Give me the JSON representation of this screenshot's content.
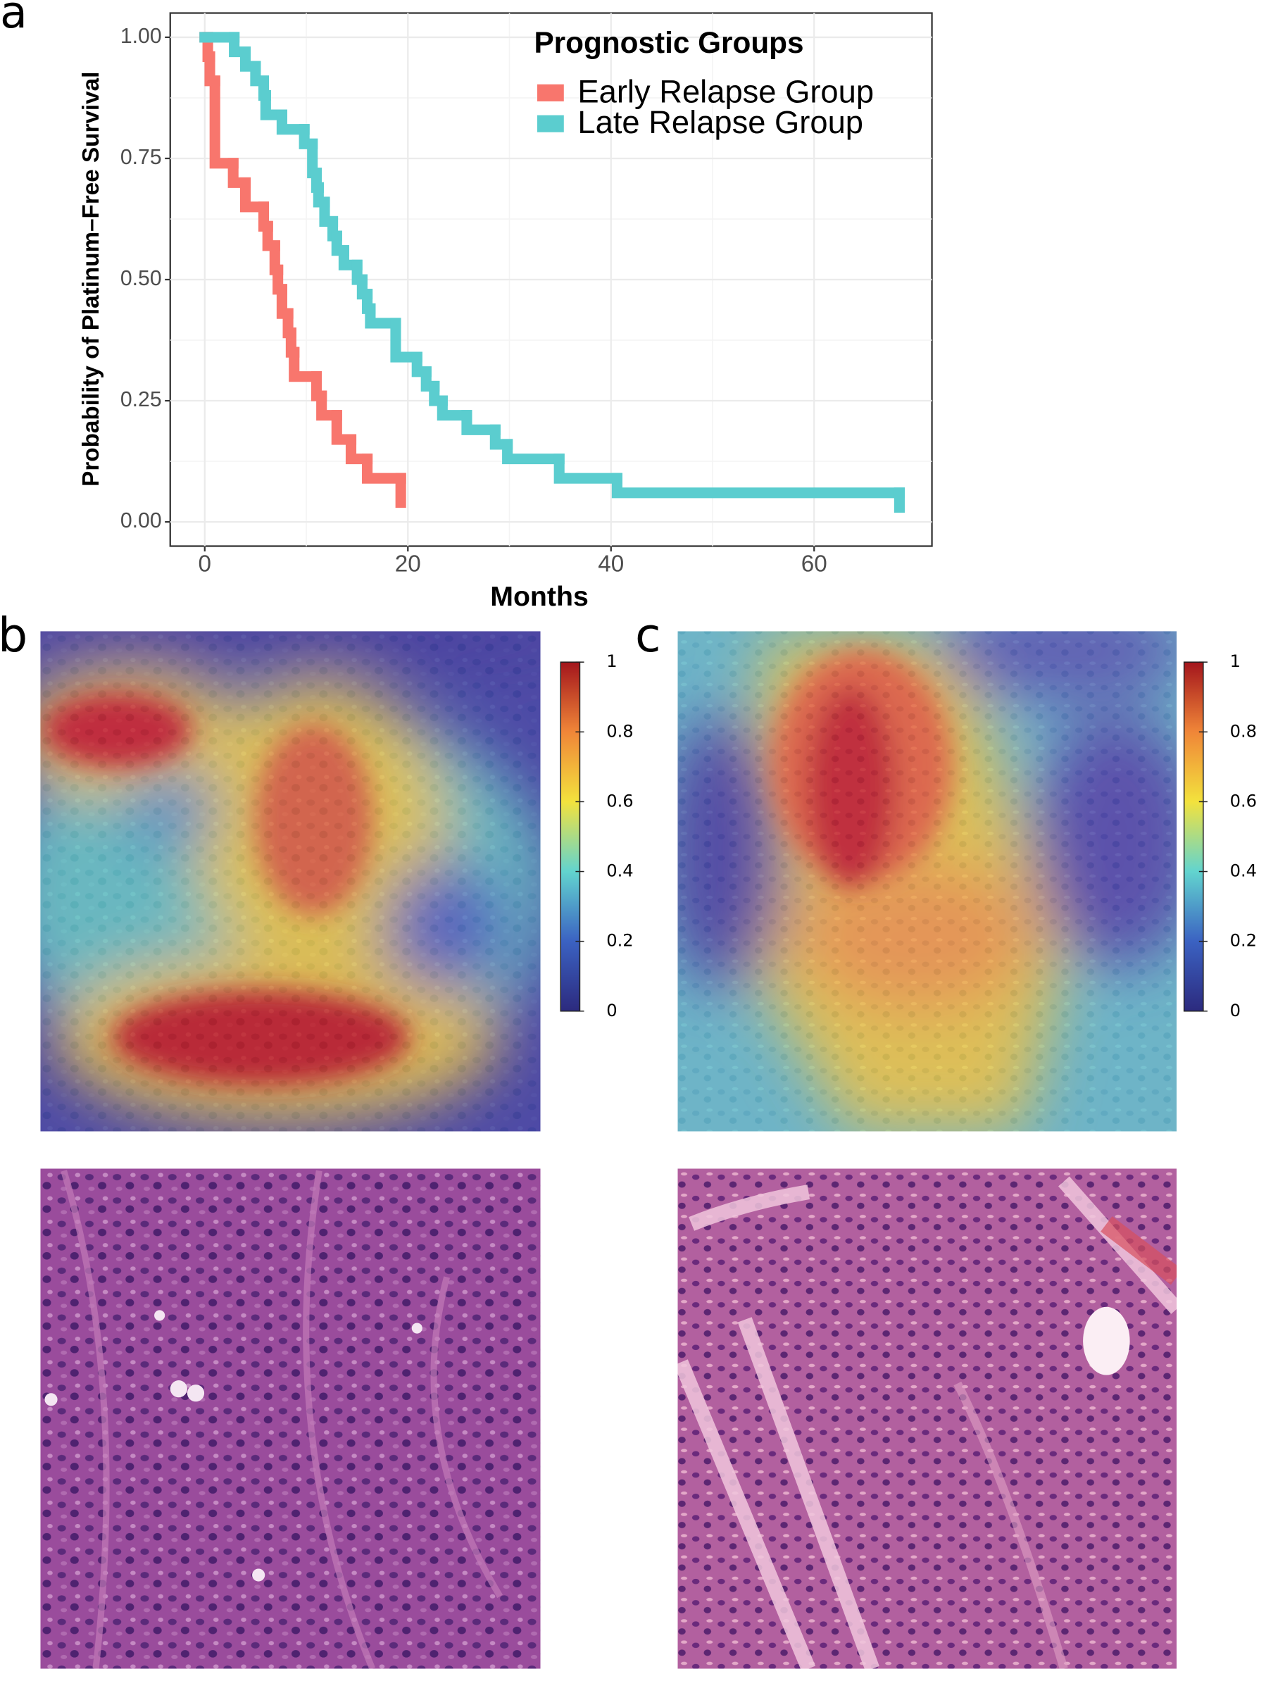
{
  "panel_labels": [
    "a",
    "b",
    "c"
  ],
  "chart_data": [
    {
      "type": "line",
      "step": true,
      "legend_title": "Prognostic Groups",
      "legend_position": "top-right",
      "x_label": "Months",
      "y_label": "Probability of Platinum–Free Survival",
      "xlim": [
        -3.4,
        71.6
      ],
      "xticks": [
        0,
        20,
        40,
        60
      ],
      "ylim": [
        -0.05,
        1.05
      ],
      "yticks": [
        {
          "value": 0,
          "label": "0.00"
        },
        {
          "value": 0.25,
          "label": "0.25"
        },
        {
          "value": 0.5,
          "label": "0.50"
        },
        {
          "value": 0.75,
          "label": "0.75"
        },
        {
          "value": 1,
          "label": "1.00"
        }
      ],
      "grid": true,
      "series": [
        {
          "name": "Early Relapse Group",
          "color": "#F8766D",
          "x": [
            0,
            0.3,
            0.5,
            1.0,
            2.8,
            4.0,
            5.8,
            6.2,
            6.9,
            7.2,
            7.6,
            8.2,
            8.5,
            8.8,
            11.0,
            11.5,
            13.0,
            14.4,
            16.0,
            19.3
          ],
          "values": [
            1.0,
            0.96,
            0.91,
            0.74,
            0.7,
            0.65,
            0.61,
            0.57,
            0.52,
            0.48,
            0.43,
            0.39,
            0.35,
            0.3,
            0.26,
            0.22,
            0.17,
            0.13,
            0.09,
            0.04
          ]
        },
        {
          "name": "Late Relapse Group",
          "color": "#5BCDCF",
          "x": [
            0,
            2.9,
            4.0,
            5.0,
            5.8,
            6.0,
            7.6,
            9.8,
            10.6,
            11.0,
            11.2,
            11.8,
            12.6,
            13.0,
            13.7,
            15.0,
            15.5,
            16.0,
            16.3,
            18.8,
            20.9,
            21.8,
            22.6,
            23.4,
            25.8,
            28.6,
            29.8,
            34.9,
            40.6,
            68.4
          ],
          "values": [
            1.0,
            0.97,
            0.94,
            0.91,
            0.88,
            0.84,
            0.81,
            0.78,
            0.72,
            0.69,
            0.66,
            0.62,
            0.59,
            0.56,
            0.53,
            0.5,
            0.47,
            0.44,
            0.41,
            0.34,
            0.31,
            0.28,
            0.25,
            0.22,
            0.19,
            0.16,
            0.13,
            0.09,
            0.06,
            0.03
          ]
        }
      ]
    },
    {
      "type": "colorbar",
      "ylim": [
        0,
        1
      ],
      "yticks": [
        0,
        0.2,
        0.4,
        0.6,
        0.8,
        1
      ],
      "colormap": [
        "#2c2a7e",
        "#3b62c2",
        "#62d4cf",
        "#f3e23d",
        "#f08638",
        "#a3151c"
      ]
    },
    {
      "type": "colorbar",
      "ylim": [
        0,
        1
      ],
      "yticks": [
        0,
        0.2,
        0.4,
        0.6,
        0.8,
        1
      ],
      "colormap": [
        "#2c2a7e",
        "#3b62c2",
        "#62d4cf",
        "#f3e23d",
        "#f08638",
        "#a3151c"
      ]
    }
  ]
}
